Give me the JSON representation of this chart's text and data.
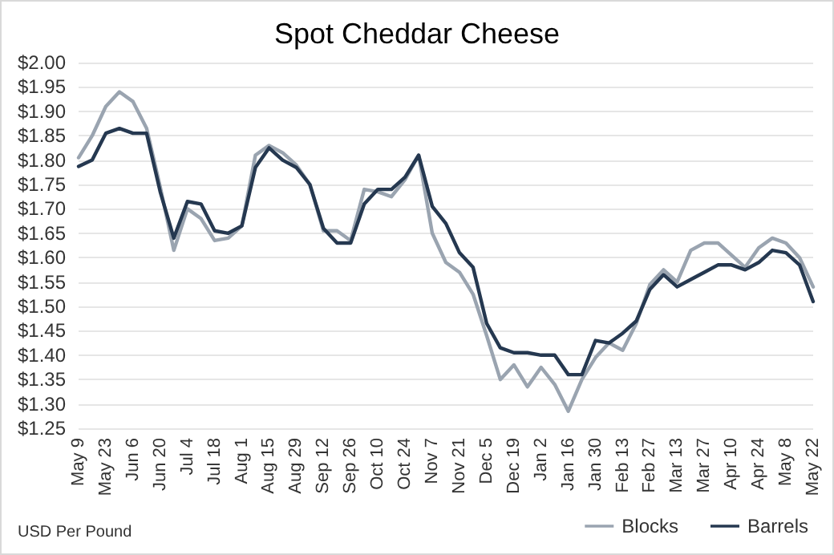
{
  "chart_data": {
    "type": "line",
    "title": "Spot Cheddar Cheese",
    "annotations": [
      "USD Per Pound"
    ],
    "categories": [
      "May 9",
      null,
      "May 23",
      null,
      "Jun 6",
      null,
      "Jun 20",
      null,
      "Jul 4",
      null,
      "Jul 18",
      null,
      "Aug 1",
      null,
      "Aug 15",
      null,
      "Aug 29",
      null,
      "Sep 12",
      null,
      "Sep 26",
      null,
      "Oct 10",
      null,
      "Oct 24",
      null,
      "Nov 7",
      null,
      "Nov 21",
      null,
      "Dec 5",
      null,
      "Dec 19",
      null,
      "Jan 2",
      null,
      "Jan 16",
      null,
      "Jan 30",
      null,
      "Feb 13",
      null,
      "Feb 27",
      null,
      "Mar 13",
      null,
      "Mar 27",
      null,
      "Apr 10",
      null,
      "Apr 24",
      null,
      "May 8",
      null,
      "May 22"
    ],
    "series": [
      {
        "name": "Blocks",
        "color": "#9aa4b0",
        "values": [
          1.805,
          1.85,
          1.91,
          1.94,
          1.92,
          1.865,
          1.745,
          1.615,
          1.7,
          1.68,
          1.635,
          1.64,
          1.665,
          1.81,
          1.83,
          1.815,
          1.79,
          1.75,
          1.655,
          1.655,
          1.635,
          1.74,
          1.735,
          1.725,
          1.76,
          1.81,
          1.65,
          1.59,
          1.57,
          1.525,
          1.44,
          1.35,
          1.38,
          1.335,
          1.375,
          1.34,
          1.285,
          1.35,
          1.395,
          1.425,
          1.41,
          1.465,
          1.545,
          1.575,
          1.55,
          1.615,
          1.63,
          1.63,
          1.605,
          1.58,
          1.62,
          1.64,
          1.63,
          1.6,
          1.54
        ]
      },
      {
        "name": "Barrels",
        "color": "#253850",
        "values": [
          1.787,
          1.8,
          1.855,
          1.865,
          1.855,
          1.855,
          1.735,
          1.64,
          1.715,
          1.71,
          1.655,
          1.65,
          1.665,
          1.785,
          1.825,
          1.8,
          1.785,
          1.75,
          1.66,
          1.63,
          1.63,
          1.71,
          1.74,
          1.74,
          1.765,
          1.81,
          1.705,
          1.67,
          1.61,
          1.58,
          1.465,
          1.415,
          1.405,
          1.405,
          1.4,
          1.4,
          1.36,
          1.36,
          1.43,
          1.425,
          1.445,
          1.47,
          1.535,
          1.565,
          1.54,
          1.555,
          1.57,
          1.585,
          1.585,
          1.575,
          1.59,
          1.615,
          1.61,
          1.585,
          1.51
        ]
      }
    ],
    "ylim": [
      1.25,
      2.0
    ],
    "yticks": [
      {
        "value": 1.25,
        "label": "$1.25"
      },
      {
        "value": 1.3,
        "label": "$1.30"
      },
      {
        "value": 1.35,
        "label": "$1.35"
      },
      {
        "value": 1.4,
        "label": "$1.40"
      },
      {
        "value": 1.45,
        "label": "$1.45"
      },
      {
        "value": 1.5,
        "label": "$1.50"
      },
      {
        "value": 1.55,
        "label": "$1.55"
      },
      {
        "value": 1.6,
        "label": "$1.60"
      },
      {
        "value": 1.65,
        "label": "$1.65"
      },
      {
        "value": 1.7,
        "label": "$1.70"
      },
      {
        "value": 1.75,
        "label": "$1.75"
      },
      {
        "value": 1.8,
        "label": "$1.80"
      },
      {
        "value": 1.85,
        "label": "$1.85"
      },
      {
        "value": 1.9,
        "label": "$1.90"
      },
      {
        "value": 1.95,
        "label": "$1.95"
      },
      {
        "value": 2.0,
        "label": "$2.00"
      }
    ],
    "grid": "y",
    "legend": "bottom right",
    "marker": "none",
    "line_style": "solid"
  }
}
